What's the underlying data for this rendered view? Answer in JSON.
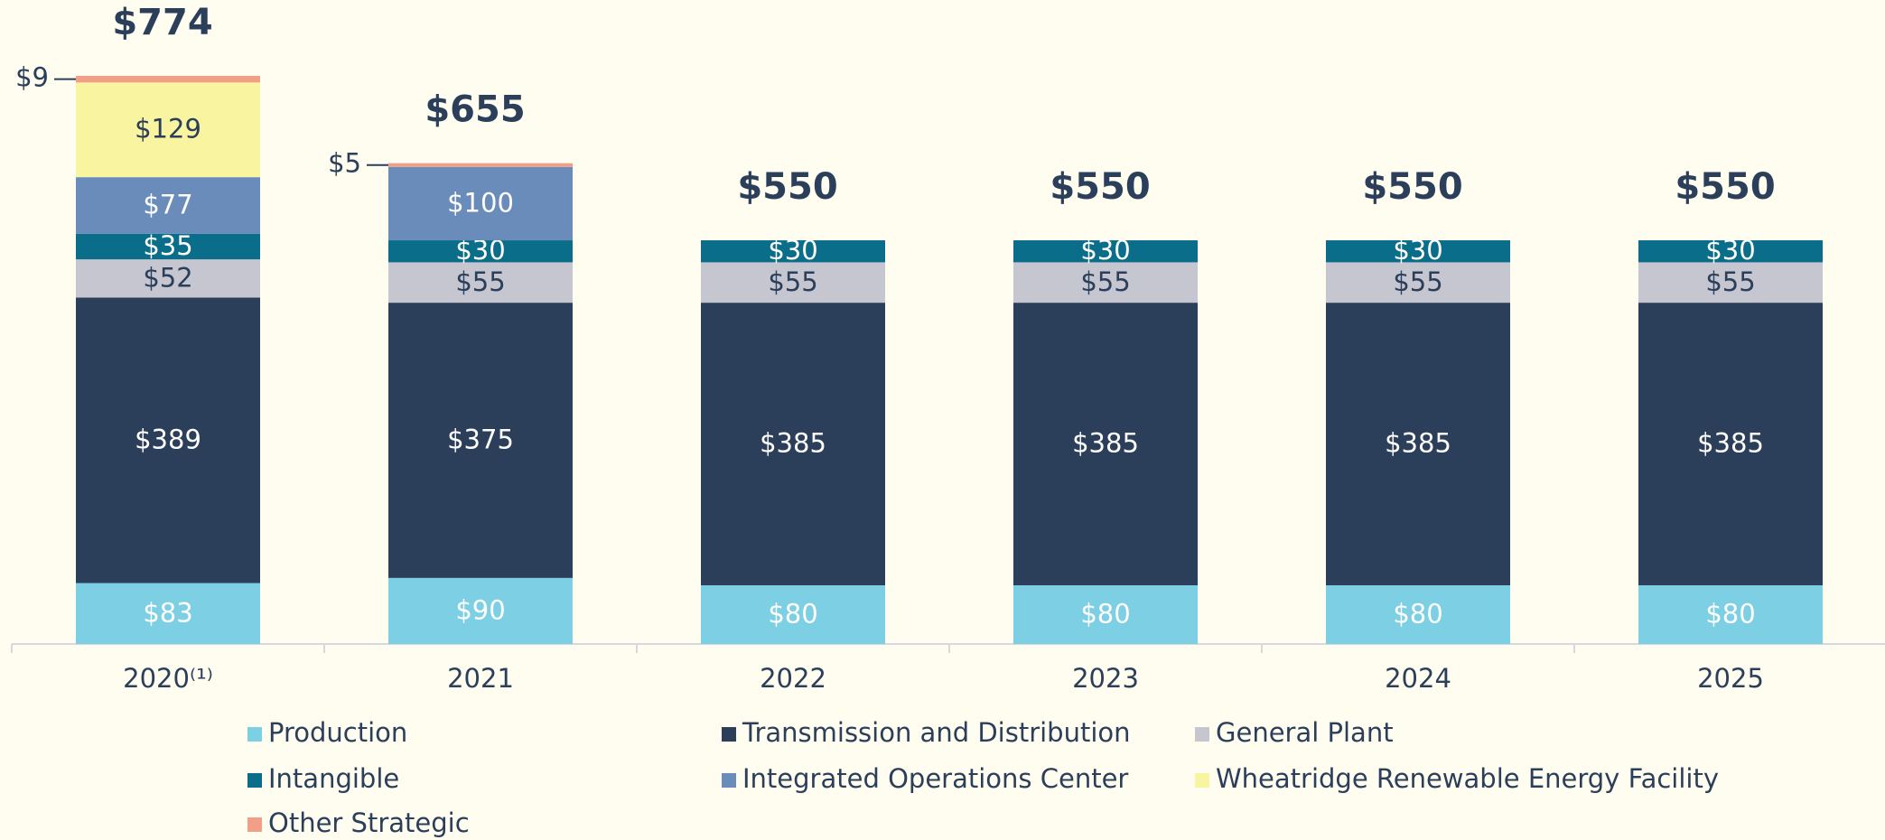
{
  "chart_data": {
    "type": "stacked_bar",
    "categories": [
      "2020⁽¹⁾",
      "2021",
      "2022",
      "2023",
      "2024",
      "2025"
    ],
    "series": [
      {
        "name": "Production",
        "color": "#7dcfe4",
        "values": [
          83,
          90,
          80,
          80,
          80,
          80
        ],
        "value_labels": [
          "$83",
          "$90",
          "$80",
          "$80",
          "$80",
          "$80"
        ]
      },
      {
        "name": "Transmission and Distribution",
        "color": "#2b3f5a",
        "values": [
          389,
          375,
          385,
          385,
          385,
          385
        ],
        "value_labels": [
          "$389",
          "$375",
          "$385",
          "$385",
          "$385",
          "$385"
        ]
      },
      {
        "name": "General Plant",
        "color": "#c5c6d0",
        "values": [
          52,
          55,
          55,
          55,
          55,
          55
        ],
        "value_labels": [
          "$52",
          "$55",
          "$55",
          "$55",
          "$55",
          "$55"
        ]
      },
      {
        "name": "Intangible",
        "color": "#0a6e8a",
        "values": [
          35,
          30,
          30,
          30,
          30,
          30
        ],
        "value_labels": [
          "$35",
          "$30",
          "$30",
          "$30",
          "$30",
          "$30"
        ]
      },
      {
        "name": "Integrated Operations Center",
        "color": "#6a8cbb",
        "values": [
          77,
          100,
          null,
          null,
          null,
          null
        ],
        "value_labels": [
          "$77",
          "$100",
          null,
          null,
          null,
          null
        ]
      },
      {
        "name": "Wheatridge Renewable Energy Facility",
        "color": "#f9f49f",
        "values": [
          129,
          null,
          null,
          null,
          null,
          null
        ],
        "value_labels": [
          "$129",
          null,
          null,
          null,
          null,
          null
        ]
      },
      {
        "name": "Other Strategic",
        "color": "#f19f86",
        "values": [
          9,
          5,
          null,
          null,
          null,
          null
        ],
        "value_labels": [
          "$9",
          "$5",
          null,
          null,
          null,
          null
        ]
      }
    ],
    "totals": [
      774,
      655,
      550,
      550,
      550,
      550
    ],
    "total_labels": [
      "$774",
      "$655",
      "$550",
      "$550",
      "$550",
      "$550"
    ]
  }
}
